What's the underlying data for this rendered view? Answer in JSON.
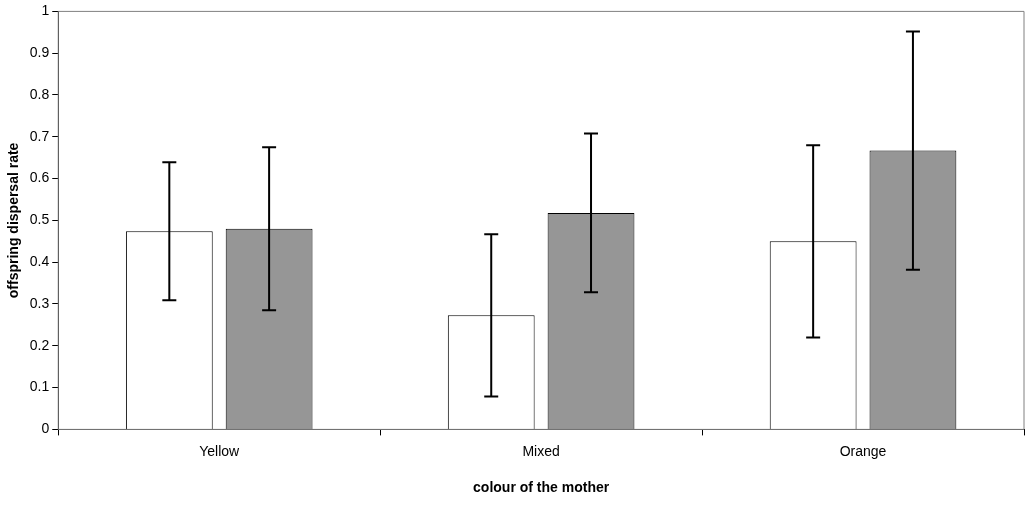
{
  "chart_data": {
    "type": "bar",
    "xlabel": "colour of the mother",
    "ylabel": "offspring dispersal rate",
    "categories": [
      "Yellow",
      "Mixed",
      "Orange"
    ],
    "series": [
      {
        "color": "#ffffff",
        "values": [
          0.474,
          0.273,
          0.45
        ],
        "errors": [
          0.165,
          0.194,
          0.23
        ]
      },
      {
        "color": "#969696",
        "values": [
          0.48,
          0.518,
          0.667
        ],
        "errors": [
          0.195,
          0.19,
          0.285
        ]
      }
    ],
    "ylim": [
      0,
      1
    ],
    "yticks": [
      0,
      0.1,
      0.2,
      0.3,
      0.4,
      0.5,
      0.6,
      0.7,
      0.8,
      0.9,
      1
    ],
    "grid": false,
    "legend": false
  }
}
